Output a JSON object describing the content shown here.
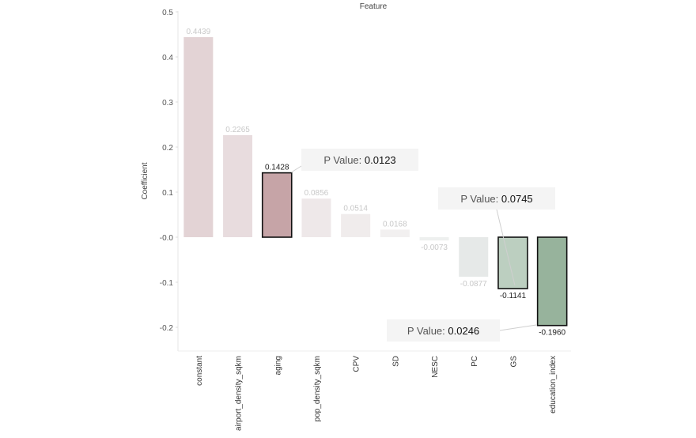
{
  "chart_data": {
    "type": "bar",
    "title": "Feature",
    "xlabel": "",
    "ylabel": "Coefficient",
    "ylim": [
      -0.25,
      0.5
    ],
    "yticks": [
      0.5,
      0.4,
      0.3,
      0.2,
      0.1,
      0.0,
      -0.1,
      -0.2
    ],
    "ytick_labels": [
      "0.5",
      "0.4",
      "0.3",
      "0.2",
      "0.1",
      "-0.0",
      "-0.1",
      "-0.2"
    ],
    "grid": false,
    "categories": [
      "constant",
      "airport_density_sqkm",
      "aging",
      "pop_density_sqkm",
      "CPV",
      "SD",
      "NESC",
      "PC",
      "GS",
      "education_index"
    ],
    "values": [
      0.4439,
      0.2265,
      0.1428,
      0.0856,
      0.0514,
      0.0168,
      -0.0073,
      -0.0877,
      -0.1141,
      -0.196
    ],
    "value_labels": [
      "0.4439",
      "0.2265",
      "0.1428",
      "0.0856",
      "0.0514",
      "0.0168",
      "-0.0073",
      "-0.0877",
      "-0.1141",
      "-0.1960"
    ],
    "colors": [
      "#e3d3d5",
      "#e8dcde",
      "#c6a4a7",
      "#eee8e9",
      "#f0ecec",
      "#f2f0f0",
      "#eef0ef",
      "#e6e9e8",
      "#bccfc0",
      "#97b39c"
    ],
    "highlighted": [
      false,
      false,
      true,
      false,
      false,
      false,
      false,
      false,
      true,
      true
    ],
    "annotations": [
      {
        "label": "P Value:",
        "value": "0.0123",
        "category": "aging"
      },
      {
        "label": "P Value:",
        "value": "0.0745",
        "category": "GS"
      },
      {
        "label": "P Value:",
        "value": "0.0246",
        "category": "education_index"
      }
    ]
  }
}
